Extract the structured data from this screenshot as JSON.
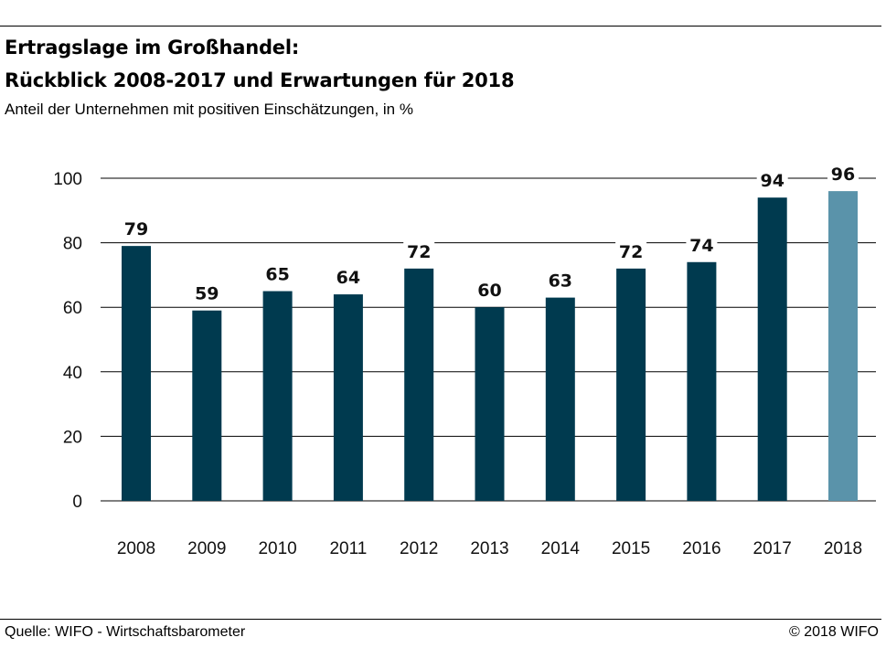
{
  "header": {
    "title_line1": "Ertragslage im Großhandel:",
    "title_line2": "Rückblick 2008-2017 und Erwartungen für 2018",
    "subtitle": "Anteil der Unternehmen mit positiven Einschätzungen, in %"
  },
  "footer": {
    "source": "Quelle: WIFO - Wirtschaftsbarometer",
    "copyright": "© 2018 WIFO"
  },
  "chart_data": {
    "type": "bar",
    "title": "Ertragslage im Großhandel: Rückblick 2008-2017 und Erwartungen für 2018",
    "subtitle": "Anteil der Unternehmen mit positiven Einschätzungen, in %",
    "categories": [
      "2008",
      "2009",
      "2010",
      "2011",
      "2012",
      "2013",
      "2014",
      "2015",
      "2016",
      "2017",
      "2018"
    ],
    "values": [
      79,
      59,
      65,
      64,
      72,
      60,
      63,
      72,
      74,
      94,
      96
    ],
    "value_labels": [
      "79",
      "59",
      "65",
      "64",
      "72",
      "60",
      "63",
      "72",
      "74",
      "94",
      "96"
    ],
    "ylim": [
      0,
      100
    ],
    "yticks": [
      0,
      20,
      40,
      60,
      80,
      100
    ],
    "ytick_labels": [
      "0",
      "20",
      "40",
      "60",
      "80",
      "100"
    ],
    "grid": true,
    "xlabel": "",
    "ylabel": "",
    "colors": {
      "actual": "#003a4f",
      "expected": "#5a93aa",
      "grid": "#000000"
    },
    "highlight_index": 10
  }
}
